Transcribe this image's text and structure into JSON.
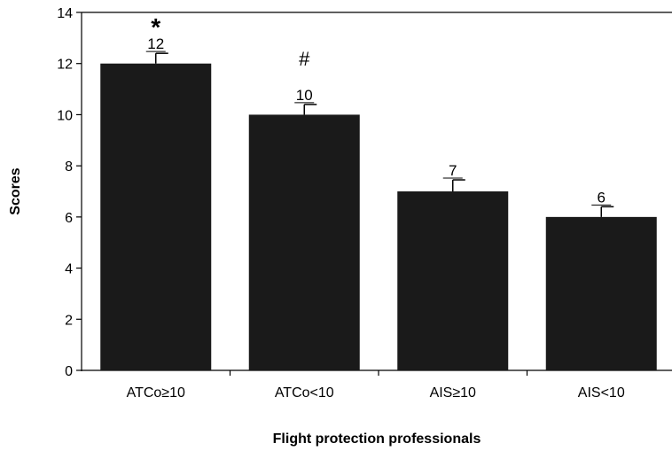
{
  "chart_data": {
    "type": "bar",
    "categories": [
      "ATCo≥10",
      "ATCo<10",
      "AIS≥10",
      "AIS<10"
    ],
    "values": [
      12,
      10,
      7,
      6
    ],
    "error_upper": [
      12.4,
      10.4,
      7.45,
      6.4
    ],
    "data_labels": [
      "12",
      "10",
      "7",
      "6"
    ],
    "annotations": [
      "*",
      "#",
      "",
      ""
    ],
    "xlabel": "Flight protection professionals",
    "ylabel": "Scores",
    "ylim": [
      0,
      14
    ],
    "yticks": [
      "0",
      "2",
      "4",
      "6",
      "8",
      "10",
      "12",
      "14"
    ],
    "bar_color": "#1a1a1a",
    "grid": false,
    "legend": "none"
  }
}
